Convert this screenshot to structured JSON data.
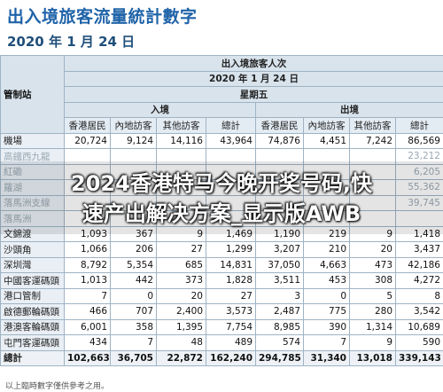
{
  "page_title": "出入境旅客流量統計數字",
  "date_title": "2020 年 1 月 24 日",
  "table": {
    "header_main": "出入境旅客人次",
    "header_date": "2020 年 1 月 24 日",
    "header_weekday": "星期五",
    "corner_label": "管制站",
    "group_arrival": "入境",
    "group_departure": "出境",
    "columns": [
      "香港居民",
      "內地訪客",
      "其他訪客",
      "總計",
      "香港居民",
      "內地訪客",
      "其他訪客",
      "總計"
    ],
    "rows": [
      {
        "station": "機場",
        "values": [
          "20,724",
          "9,124",
          "14,116",
          "43,964",
          "74,876",
          "4,451",
          "7,242",
          "86,569"
        ]
      },
      {
        "station": "高鐵西九龍",
        "values": [
          "",
          "",
          "",
          "",
          "",
          "",
          "",
          "23,212"
        ]
      },
      {
        "station": "紅磡",
        "values": [
          "",
          "",
          "",
          "",
          "",
          "",
          "",
          "6,205"
        ]
      },
      {
        "station": "羅湖",
        "values": [
          "",
          "",
          "",
          "",
          "",
          "",
          "",
          "55,362"
        ]
      },
      {
        "station": "落馬洲支線",
        "values": [
          "",
          "",
          "",
          "",
          "",
          "",
          "",
          "39,745"
        ]
      },
      {
        "station": "落馬洲",
        "values": [
          "",
          "",
          "",
          "",
          "",
          "",
          "",
          ""
        ]
      },
      {
        "station": "文錦渡",
        "values": [
          "1,093",
          "367",
          "9",
          "1,469",
          "1,190",
          "219",
          "9",
          "1,418"
        ]
      },
      {
        "station": "沙頭角",
        "values": [
          "1,066",
          "206",
          "27",
          "1,299",
          "3,207",
          "210",
          "20",
          "3,437"
        ]
      },
      {
        "station": "深圳灣",
        "values": [
          "8,792",
          "5,354",
          "685",
          "14,831",
          "37,050",
          "4,663",
          "473",
          "42,186"
        ]
      },
      {
        "station": "中國客運碼頭",
        "values": [
          "1,013",
          "442",
          "373",
          "1,828",
          "3,511",
          "453",
          "308",
          "4,272"
        ]
      },
      {
        "station": "港口管制",
        "values": [
          "7",
          "0",
          "20",
          "27",
          "3",
          "0",
          "5",
          "8"
        ]
      },
      {
        "station": "啟德郵輪碼頭",
        "values": [
          "466",
          "707",
          "2,400",
          "3,573",
          "2,487",
          "775",
          "280",
          "3,542"
        ]
      },
      {
        "station": "港澳客輪碼頭",
        "values": [
          "6,001",
          "358",
          "1,395",
          "7,754",
          "8,985",
          "390",
          "1,314",
          "10,689"
        ]
      },
      {
        "station": "屯門客運碼頭",
        "values": [
          "434",
          "7",
          "48",
          "489",
          "574",
          "7",
          "9",
          "590"
        ]
      },
      {
        "station": "總計",
        "values": [
          "102,663",
          "36,705",
          "22,872",
          "162,240",
          "294,785",
          "31,340",
          "13,018",
          "339,143"
        ]
      }
    ]
  },
  "footnote": "以上臨時數字僅供參考之用。",
  "overlay": {
    "line1": "2024香港特马今晚开奖号码,快",
    "line2": "速产出解决方案_显示版AWB"
  }
}
